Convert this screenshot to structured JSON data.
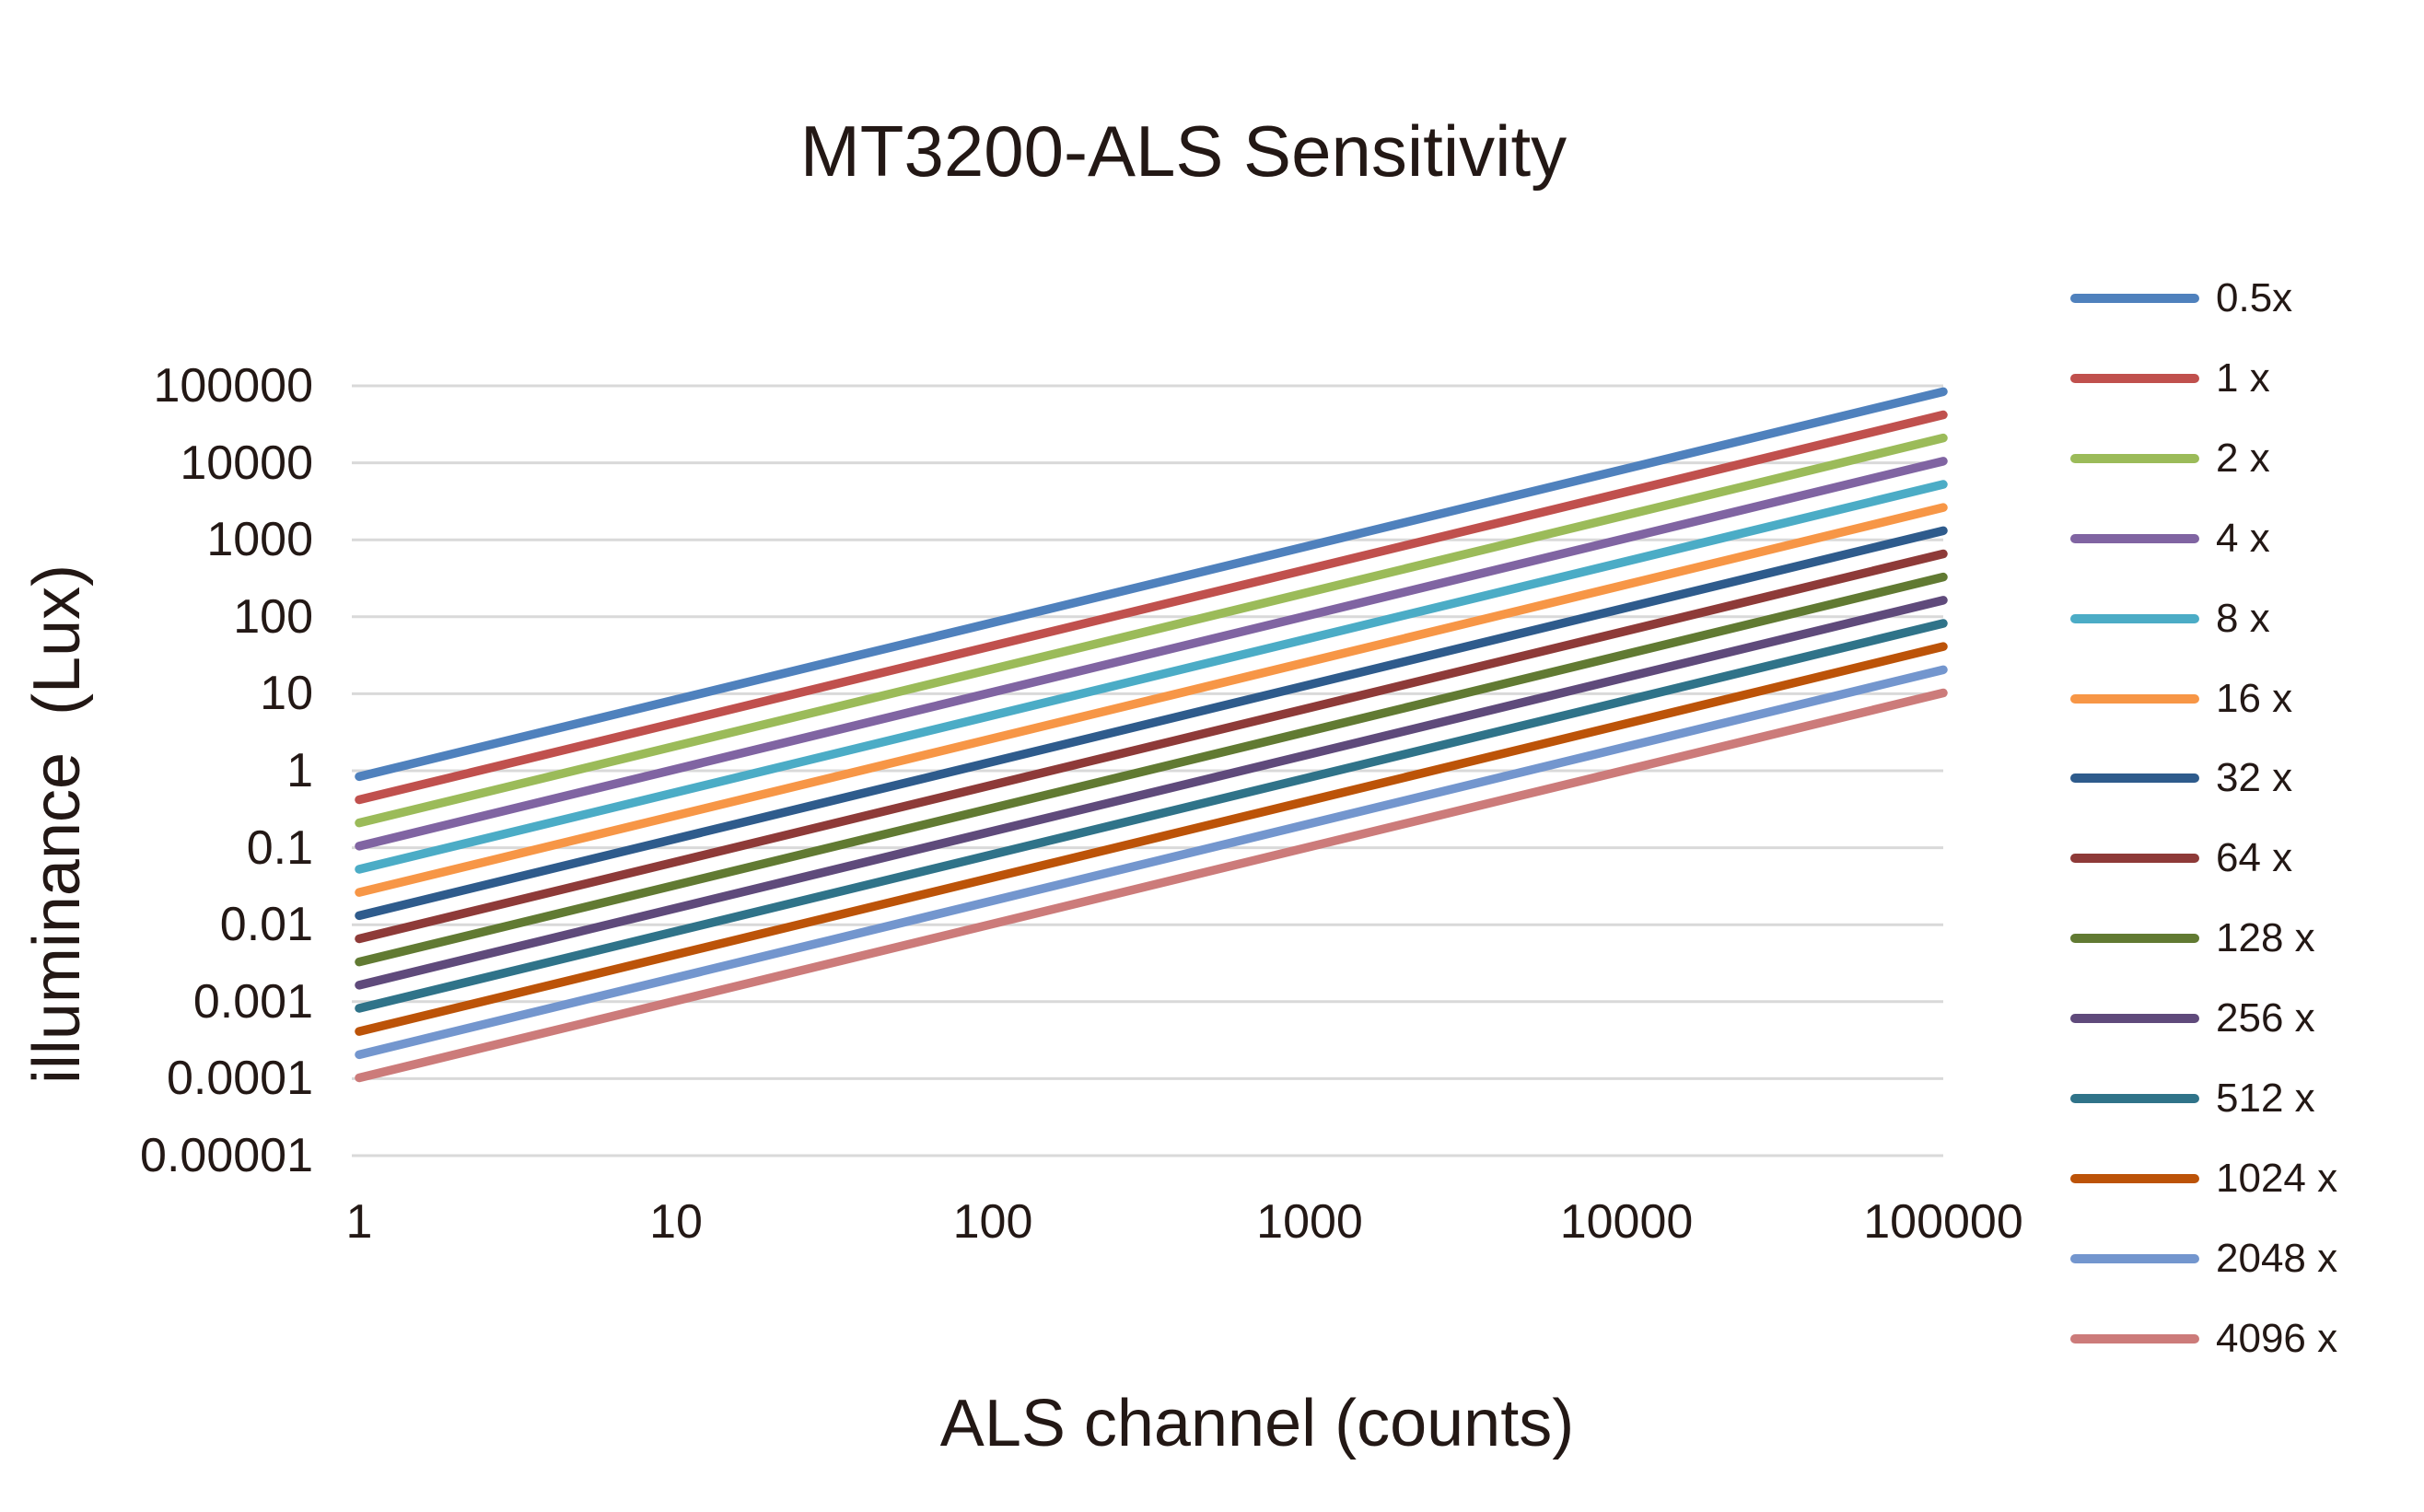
{
  "chart": {
    "title": "MT3200-ALS Sensitivity",
    "xlabel": "ALS channel (counts)",
    "ylabel_display": "illuminance  (Lux)"
  },
  "chart_data": {
    "type": "line",
    "title": "MT3200-ALS Sensitivity",
    "xlabel": "ALS channel (counts)",
    "ylabel": "illuminance (Lux)",
    "x_scale": "log",
    "y_scale": "log",
    "xlim": [
      1,
      100000
    ],
    "ylim": [
      1e-05,
      100000
    ],
    "x_tick_labels": [
      "1",
      "10",
      "100",
      "1000",
      "10000",
      "100000"
    ],
    "x_tick_values": [
      1,
      10,
      100,
      1000,
      10000,
      100000
    ],
    "y_tick_labels": [
      "100000",
      "10000",
      "1000",
      "100",
      "10",
      "1",
      "0.1",
      "0.01",
      "0.001",
      "0.0001",
      "0.00001"
    ],
    "y_tick_values": [
      100000,
      10000,
      1000,
      100,
      10,
      1,
      0.1,
      0.01,
      0.001,
      0.0001,
      1e-05
    ],
    "grid": "horizontal-only",
    "gridline_color": "#D9D9D9",
    "legend_position": "right",
    "relationship": "straight parallel lines on log-log axes: illuminance = sensitivity x counts, sensitivity halves as gain doubles",
    "series": [
      {
        "name": "0.5x",
        "gain": 0.5,
        "sensitivity_lux_per_count": 0.84,
        "color": "#4F81BD",
        "x": [
          1,
          100000
        ],
        "y": [
          0.84,
          84000
        ]
      },
      {
        "name": "1 x",
        "gain": 1,
        "sensitivity_lux_per_count": 0.42,
        "color": "#C0504D",
        "x": [
          1,
          100000
        ],
        "y": [
          0.42,
          42000
        ]
      },
      {
        "name": "2 x",
        "gain": 2,
        "sensitivity_lux_per_count": 0.21,
        "color": "#9BBB59",
        "x": [
          1,
          100000
        ],
        "y": [
          0.21,
          21000
        ]
      },
      {
        "name": "4 x",
        "gain": 4,
        "sensitivity_lux_per_count": 0.105,
        "color": "#8064A2",
        "x": [
          1,
          100000
        ],
        "y": [
          0.105,
          10500
        ]
      },
      {
        "name": "8 x",
        "gain": 8,
        "sensitivity_lux_per_count": 0.0525,
        "color": "#4BACC6",
        "x": [
          1,
          100000
        ],
        "y": [
          0.0525,
          5250
        ]
      },
      {
        "name": "16 x",
        "gain": 16,
        "sensitivity_lux_per_count": 0.02625,
        "color": "#F79646",
        "x": [
          1,
          100000
        ],
        "y": [
          0.02625,
          2625
        ]
      },
      {
        "name": "32 x",
        "gain": 32,
        "sensitivity_lux_per_count": 0.013125,
        "color": "#2E5B8C",
        "x": [
          1,
          100000
        ],
        "y": [
          0.013125,
          1312.5
        ]
      },
      {
        "name": "64 x",
        "gain": 64,
        "sensitivity_lux_per_count": 0.0065625,
        "color": "#8E3A38",
        "x": [
          1,
          100000
        ],
        "y": [
          0.0065625,
          656.25
        ]
      },
      {
        "name": "128 x",
        "gain": 128,
        "sensitivity_lux_per_count": 0.00328125,
        "color": "#617A32",
        "x": [
          1,
          100000
        ],
        "y": [
          0.00328125,
          328.125
        ]
      },
      {
        "name": "256 x",
        "gain": 256,
        "sensitivity_lux_per_count": 0.00164063,
        "color": "#5F4A7B",
        "x": [
          1,
          100000
        ],
        "y": [
          0.00164063,
          164.0625
        ]
      },
      {
        "name": "512 x",
        "gain": 512,
        "sensitivity_lux_per_count": 0.00082031,
        "color": "#2F7389",
        "x": [
          1,
          100000
        ],
        "y": [
          0.00082031,
          82.03125
        ]
      },
      {
        "name": "1024 x",
        "gain": 1024,
        "sensitivity_lux_per_count": 0.00041016,
        "color": "#BC5308",
        "x": [
          1,
          100000
        ],
        "y": [
          0.00041016,
          41.015625
        ]
      },
      {
        "name": "2048 x",
        "gain": 2048,
        "sensitivity_lux_per_count": 0.00020508,
        "color": "#7396CE",
        "x": [
          1,
          100000
        ],
        "y": [
          0.00020508,
          20.507813
        ]
      },
      {
        "name": "4096 x",
        "gain": 4096,
        "sensitivity_lux_per_count": 0.00010254,
        "color": "#CC7B7A",
        "x": [
          1,
          100000
        ],
        "y": [
          0.00010254,
          10.253906
        ]
      }
    ]
  }
}
